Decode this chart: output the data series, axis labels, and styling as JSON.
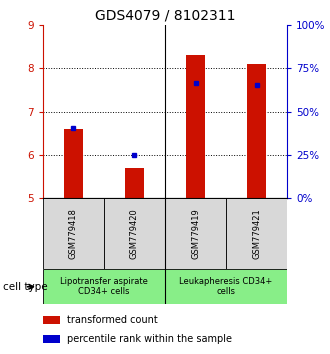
{
  "title": "GDS4079 / 8102311",
  "samples": [
    "GSM779418",
    "GSM779420",
    "GSM779419",
    "GSM779421"
  ],
  "red_values": [
    6.6,
    5.7,
    8.3,
    8.1
  ],
  "blue_values": [
    6.62,
    6.0,
    7.65,
    7.6
  ],
  "ylim": [
    5,
    9
  ],
  "yticks": [
    5,
    6,
    7,
    8,
    9
  ],
  "y2lim": [
    0,
    100
  ],
  "y2ticks": [
    0,
    25,
    50,
    75,
    100
  ],
  "y2ticklabels": [
    "0%",
    "25%",
    "50%",
    "75%",
    "100%"
  ],
  "bar_width": 0.3,
  "bar_color": "#cc1100",
  "dot_color": "#0000cc",
  "group_labels": [
    "Lipotransfer aspirate\nCD34+ cells",
    "Leukapheresis CD34+\ncells"
  ],
  "group_color": "#88ee88",
  "group_bg": "#d8d8d8",
  "cell_type_label": "cell type",
  "legend_red": "transformed count",
  "legend_blue": "percentile rank within the sample",
  "title_fontsize": 10,
  "tick_fontsize": 7.5,
  "sample_fontsize": 6,
  "group_fontsize": 6,
  "legend_fontsize": 7
}
